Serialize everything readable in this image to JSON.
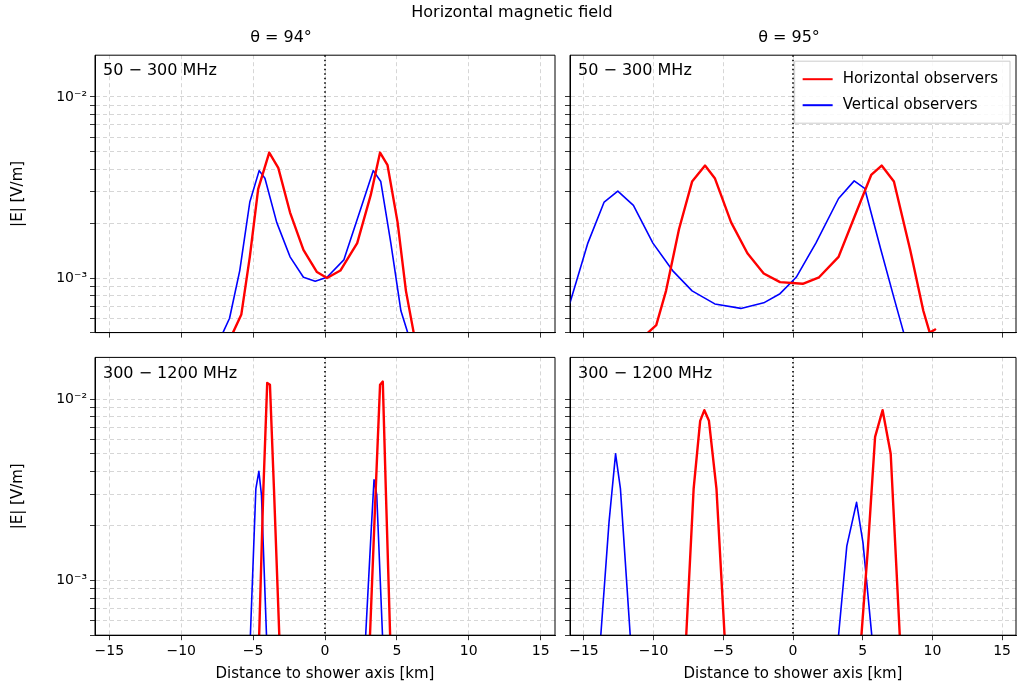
{
  "chart_data": [
    {
      "type": "line",
      "title": "Horizontal magnetic field",
      "subtitle": "θ = 94°",
      "ylabel": "|E| [V/m]",
      "annotations": [
        "50 − 300 MHz"
      ],
      "log": "y",
      "grid": true,
      "tick_labels": "y",
      "xlim": [
        -16,
        16
      ],
      "xticks": [
        {
          "value": -15,
          "label": null
        },
        {
          "value": -10,
          "label": null
        },
        {
          "value": -5,
          "label": null
        },
        {
          "value": 0,
          "label": null
        },
        {
          "value": 5,
          "label": null
        },
        {
          "value": 10,
          "label": null
        },
        {
          "value": 15,
          "label": null
        }
      ],
      "ylim": [
        0.0005,
        0.017
      ],
      "yticks": [
        {
          "value": 0.0005,
          "label": null
        },
        {
          "value": 0.0006,
          "label": null
        },
        {
          "value": 0.0007,
          "label": null
        },
        {
          "value": 0.0008,
          "label": null
        },
        {
          "value": 0.0009,
          "label": null
        },
        {
          "value": 0.001,
          "label": "10⁻³"
        },
        {
          "value": 0.002,
          "label": null
        },
        {
          "value": 0.003,
          "label": null
        },
        {
          "value": 0.004,
          "label": null
        },
        {
          "value": 0.005,
          "label": null
        },
        {
          "value": 0.006,
          "label": null
        },
        {
          "value": 0.007,
          "label": null
        },
        {
          "value": 0.008,
          "label": null
        },
        {
          "value": 0.009,
          "label": null
        },
        {
          "value": 0.01,
          "label": "10⁻²"
        }
      ],
      "ref_lines": [
        {
          "axis": "x",
          "value": 0,
          "color": "#000000",
          "line_style": "dotted"
        }
      ],
      "series": [
        {
          "color": "#ff0000",
          "x": [
            -6.4,
            -5.82,
            -5.23,
            -4.65,
            -3.88,
            -3.25,
            -2.43,
            -1.5,
            -0.56,
            0.14,
            1.07,
            2.24,
            3.18,
            3.83,
            4.35,
            5.05,
            5.63,
            6.17
          ],
          "values": [
            0.0005,
            0.00063,
            0.00131,
            0.0031,
            0.00493,
            0.00406,
            0.0023,
            0.00143,
            0.00108,
            0.001,
            0.0011,
            0.00156,
            0.00287,
            0.00493,
            0.0042,
            0.00203,
            0.00085,
            0.0005
          ]
        },
        {
          "color": "#0000ff",
          "x": [
            -7.1,
            -6.64,
            -5.93,
            -5.23,
            -4.58,
            -4.18,
            -3.36,
            -2.43,
            -1.5,
            -0.68,
            0.14,
            1.31,
            2.48,
            3.36,
            3.88,
            4.58,
            5.28,
            5.75
          ],
          "values": [
            0.0005,
            0.0006,
            0.0011,
            0.00263,
            0.00392,
            0.00356,
            0.00203,
            0.00131,
            0.00101,
            0.00096,
            0.00101,
            0.00126,
            0.00241,
            0.00392,
            0.00341,
            0.00156,
            0.00066,
            0.0005
          ]
        }
      ]
    },
    {
      "type": "line",
      "subtitle": "θ = 95°",
      "annotations": [
        "50 − 300 MHz"
      ],
      "log": "y",
      "grid": true,
      "tick_labels": false,
      "legend": "top right",
      "xlim": [
        -16,
        16
      ],
      "xticks": [
        {
          "value": -15,
          "label": null
        },
        {
          "value": -10,
          "label": null
        },
        {
          "value": -5,
          "label": null
        },
        {
          "value": 0,
          "label": null
        },
        {
          "value": 5,
          "label": null
        },
        {
          "value": 10,
          "label": null
        },
        {
          "value": 15,
          "label": null
        }
      ],
      "ylim": [
        0.0005,
        0.017
      ],
      "yticks": [
        {
          "value": 0.0005,
          "label": null
        },
        {
          "value": 0.0006,
          "label": null
        },
        {
          "value": 0.0007,
          "label": null
        },
        {
          "value": 0.0008,
          "label": null
        },
        {
          "value": 0.0009,
          "label": null
        },
        {
          "value": 0.001,
          "label": null
        },
        {
          "value": 0.002,
          "label": null
        },
        {
          "value": 0.003,
          "label": null
        },
        {
          "value": 0.004,
          "label": null
        },
        {
          "value": 0.005,
          "label": null
        },
        {
          "value": 0.006,
          "label": null
        },
        {
          "value": 0.007,
          "label": null
        },
        {
          "value": 0.008,
          "label": null
        },
        {
          "value": 0.009,
          "label": null
        },
        {
          "value": 0.01,
          "label": null
        }
      ],
      "ref_lines": [
        {
          "axis": "x",
          "value": 0,
          "color": "#000000",
          "line_style": "dotted"
        }
      ],
      "series": [
        {
          "name": "Horizontal observers",
          "color": "#ff0000",
          "x": [
            -10.4,
            -9.81,
            -9.11,
            -8.18,
            -7.24,
            -6.31,
            -5.61,
            -4.44,
            -3.27,
            -2.1,
            -0.93,
            0.7,
            1.87,
            3.27,
            4.44,
            5.61,
            6.36,
            7.24,
            8.41,
            9.35,
            9.81,
            10.2
          ],
          "values": [
            0.0005,
            0.00055,
            0.00085,
            0.00186,
            0.00341,
            0.00418,
            0.00356,
            0.00203,
            0.00137,
            0.00106,
            0.00095,
            0.00093,
            0.00101,
            0.00131,
            0.00221,
            0.00371,
            0.00418,
            0.00341,
            0.00143,
            0.00066,
            0.0005,
            0.00052
          ]
        },
        {
          "name": "Vertical observers",
          "color": "#0000ff",
          "x": [
            -16,
            -14.72,
            -13.55,
            -12.57,
            -11.45,
            -10.05,
            -8.64,
            -7.24,
            -5.61,
            -3.74,
            -2.1,
            -0.93,
            0.23,
            1.64,
            3.27,
            4.39,
            5.14,
            6.31,
            7.24,
            7.94
          ],
          "values": [
            0.00073,
            0.00156,
            0.00263,
            0.00302,
            0.00252,
            0.00156,
            0.0011,
            0.00085,
            0.00072,
            0.00068,
            0.00073,
            0.00082,
            0.00101,
            0.00156,
            0.00275,
            0.00344,
            0.00313,
            0.00143,
            0.00078,
            0.0005
          ]
        }
      ]
    },
    {
      "type": "line",
      "xlabel": "Distance to shower axis [km]",
      "ylabel": "|E| [V/m]",
      "annotations": [
        "300 − 1200 MHz"
      ],
      "log": "y",
      "grid": true,
      "xlim": [
        -16,
        16
      ],
      "xticks": [
        -15,
        -10,
        -5,
        0,
        5,
        10,
        15
      ],
      "ylim": [
        0.0005,
        0.017
      ],
      "yticks": [
        {
          "value": 0.0005,
          "label": null
        },
        {
          "value": 0.0006,
          "label": null
        },
        {
          "value": 0.0007,
          "label": null
        },
        {
          "value": 0.0008,
          "label": null
        },
        {
          "value": 0.0009,
          "label": null
        },
        {
          "value": 0.001,
          "label": "10⁻³"
        },
        {
          "value": 0.002,
          "label": null
        },
        {
          "value": 0.003,
          "label": null
        },
        {
          "value": 0.004,
          "label": null
        },
        {
          "value": 0.005,
          "label": null
        },
        {
          "value": 0.006,
          "label": null
        },
        {
          "value": 0.007,
          "label": null
        },
        {
          "value": 0.008,
          "label": null
        },
        {
          "value": 0.009,
          "label": null
        },
        {
          "value": 0.01,
          "label": "10⁻²"
        }
      ],
      "ref_lines": [
        {
          "axis": "x",
          "value": 0,
          "color": "#000000",
          "line_style": "dotted"
        }
      ],
      "series": [
        {
          "color": "#ff0000",
          "x": [
            -4.58,
            -4.3,
            -4.02,
            -3.83,
            -3.55,
            -3.18,
            0,
            3.13,
            3.53,
            3.83,
            4.02,
            4.23,
            4.53
          ],
          "values": [
            0.0005,
            0.00297,
            0.0123,
            0.012,
            0.0032,
            0.0005,
            null,
            0.0005,
            0.0032,
            0.012,
            0.0125,
            0.0032,
            0.0005
          ]
        },
        {
          "color": "#0000ff",
          "x": [
            -5.19,
            -4.81,
            -4.6,
            -4.42,
            -4.07,
            0,
            2.83,
            3.22,
            3.41,
            3.6,
            4.0
          ],
          "values": [
            0.0005,
            0.0032,
            0.004,
            0.00297,
            0.0005,
            null,
            0.0005,
            0.00193,
            0.0036,
            0.00297,
            0.0005
          ]
        }
      ]
    },
    {
      "type": "line",
      "xlabel": "Distance to shower axis [km]",
      "annotations": [
        "300 − 1200 MHz"
      ],
      "log": "y",
      "grid": true,
      "tick_labels": "x",
      "xlim": [
        -16,
        16
      ],
      "xticks": [
        -15,
        -10,
        -5,
        0,
        5,
        10,
        15
      ],
      "ylim": [
        0.0005,
        0.017
      ],
      "yticks": [
        {
          "value": 0.0005,
          "label": null
        },
        {
          "value": 0.0006,
          "label": null
        },
        {
          "value": 0.0007,
          "label": null
        },
        {
          "value": 0.0008,
          "label": null
        },
        {
          "value": 0.0009,
          "label": null
        },
        {
          "value": 0.001,
          "label": null
        },
        {
          "value": 0.002,
          "label": null
        },
        {
          "value": 0.003,
          "label": null
        },
        {
          "value": 0.004,
          "label": null
        },
        {
          "value": 0.005,
          "label": null
        },
        {
          "value": 0.006,
          "label": null
        },
        {
          "value": 0.007,
          "label": null
        },
        {
          "value": 0.008,
          "label": null
        },
        {
          "value": 0.009,
          "label": null
        },
        {
          "value": 0.01,
          "label": null
        }
      ],
      "ref_lines": [
        {
          "axis": "x",
          "value": 0,
          "color": "#000000",
          "line_style": "dotted"
        }
      ],
      "series": [
        {
          "color": "#ff0000",
          "x": [
            -7.66,
            -7.13,
            -6.66,
            -6.36,
            -6.03,
            -5.49,
            -4.91,
            0,
            4.91,
            5.37,
            5.89,
            6.43,
            7.01,
            7.66
          ],
          "values": [
            0.0005,
            0.0032,
            0.0076,
            0.0087,
            0.0076,
            0.0032,
            0.0005,
            null,
            0.0005,
            0.00149,
            0.0062,
            0.0087,
            0.005,
            0.0005
          ]
        },
        {
          "color": "#0000ff",
          "x": [
            -13.79,
            -13.2,
            -12.73,
            -12.38,
            -11.68,
            0,
            3.27,
            3.86,
            4.56,
            5.02,
            5.65
          ],
          "values": [
            0.0005,
            0.0021,
            0.005,
            0.0032,
            0.0005,
            null,
            0.0005,
            0.00155,
            0.0027,
            0.00162,
            0.0005
          ]
        }
      ]
    }
  ]
}
